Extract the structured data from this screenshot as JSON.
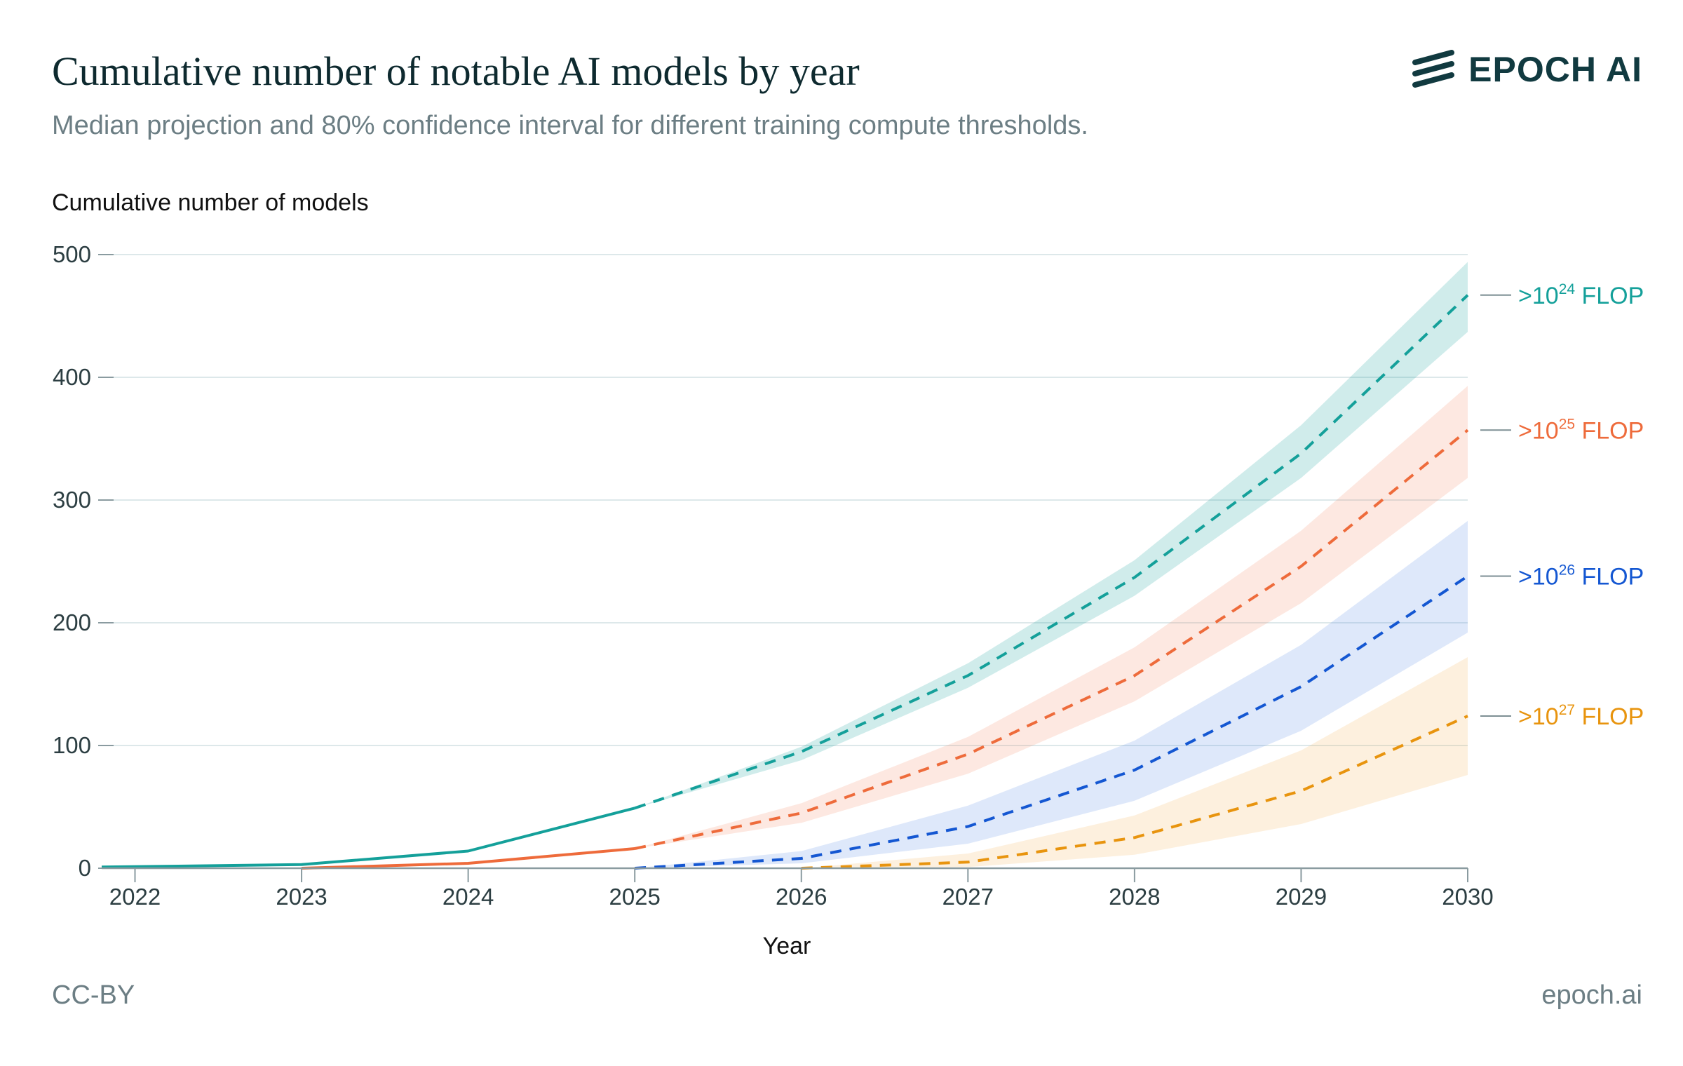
{
  "header": {
    "title": "Cumulative number of notable AI models by year",
    "subtitle": "Median projection and 80% confidence interval for different training compute thresholds."
  },
  "logo": {
    "icon": "epoch-logo-icon",
    "text": "EPOCH AI"
  },
  "footer": {
    "license": "CC-BY",
    "site": "epoch.ai"
  },
  "chart_data": {
    "type": "line",
    "ylabel": "Cumulative number of models",
    "xlabel": "Year",
    "xlim": [
      2021.8,
      2030
    ],
    "ylim": [
      0,
      500
    ],
    "xticks": [
      "2022",
      "2023",
      "2024",
      "2025",
      "2026",
      "2027",
      "2028",
      "2029",
      "2030"
    ],
    "yticks": [
      "0",
      "100",
      "200",
      "300",
      "400",
      "500"
    ],
    "grid": true,
    "legend": "inline-right",
    "series": [
      {
        "label_prefix": ">10",
        "label_exp": "24",
        "label_suffix": " FLOP",
        "color": "#14a09a",
        "band_color": "#14a09a",
        "observed": {
          "x": [
            2021.8,
            2023,
            2024,
            2025
          ],
          "y": [
            1,
            3,
            14,
            49
          ]
        },
        "projected": {
          "x": [
            2025,
            2026,
            2027,
            2028,
            2029,
            2030
          ],
          "median": [
            49,
            95,
            157,
            237,
            338,
            467
          ],
          "low": [
            49,
            88,
            147,
            222,
            318,
            437
          ],
          "high": [
            49,
            99,
            167,
            251,
            361,
            494
          ]
        }
      },
      {
        "label_prefix": ">10",
        "label_exp": "25",
        "label_suffix": " FLOP",
        "color": "#ee6b3b",
        "band_color": "#f58c6a",
        "observed": {
          "x": [
            2023,
            2024,
            2025
          ],
          "y": [
            0,
            4,
            16
          ]
        },
        "projected": {
          "x": [
            2025,
            2026,
            2027,
            2028,
            2029,
            2030
          ],
          "median": [
            16,
            45,
            93,
            157,
            246,
            357
          ],
          "low": [
            16,
            37,
            77,
            136,
            216,
            318
          ],
          "high": [
            16,
            53,
            107,
            180,
            275,
            393
          ]
        }
      },
      {
        "label_prefix": ">10",
        "label_exp": "26",
        "label_suffix": " FLOP",
        "color": "#1457d2",
        "band_color": "#5b8ee6",
        "projected": {
          "x": [
            2025,
            2026,
            2027,
            2028,
            2029,
            2030
          ],
          "median": [
            0,
            8,
            34,
            80,
            148,
            238
          ],
          "low": [
            0,
            4,
            20,
            55,
            112,
            192
          ],
          "high": [
            0,
            14,
            51,
            104,
            182,
            283
          ]
        }
      },
      {
        "label_prefix": ">10",
        "label_exp": "27",
        "label_suffix": " FLOP",
        "color": "#e8940e",
        "band_color": "#f6b35a",
        "projected": {
          "x": [
            2026,
            2027,
            2028,
            2029,
            2030
          ],
          "median": [
            0,
            5,
            25,
            63,
            124
          ],
          "low": [
            0,
            1,
            11,
            36,
            76
          ],
          "high": [
            0,
            12,
            43,
            96,
            172
          ]
        }
      }
    ]
  }
}
